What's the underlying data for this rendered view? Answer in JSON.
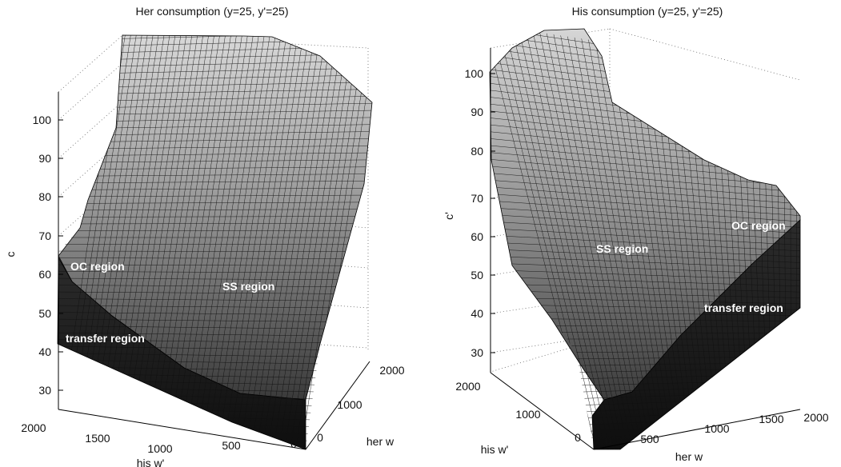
{
  "chart_data": [
    {
      "type": "surface",
      "title": "Her consumption (y=25, y'=25)",
      "zlabel": "c",
      "xlabel": "his w'",
      "ylabel": "her w",
      "z_ticks": [
        "30",
        "40",
        "50",
        "60",
        "70",
        "80",
        "90",
        "100"
      ],
      "x_ticks": [
        "2000",
        "1500",
        "1000",
        "500",
        "0"
      ],
      "y_ticks": [
        "0",
        "1000",
        "2000"
      ],
      "zlim": [
        25,
        108
      ],
      "grid": true,
      "annotations": [
        "OC region",
        "SS region",
        "transfer region"
      ]
    },
    {
      "type": "surface",
      "title": "His consumption (y=25, y'=25)",
      "zlabel": "c'",
      "xlabel": "his w'",
      "ylabel": "her w",
      "z_ticks": [
        "30",
        "40",
        "50",
        "60",
        "70",
        "80",
        "90",
        "100"
      ],
      "x_ticks": [
        "2000",
        "1000",
        "0"
      ],
      "y_ticks": [
        "0",
        "500",
        "1000",
        "1500",
        "2000"
      ],
      "zlim": [
        25,
        108
      ],
      "grid": true,
      "annotations": [
        "SS region",
        "OC region",
        "transfer region"
      ]
    }
  ]
}
